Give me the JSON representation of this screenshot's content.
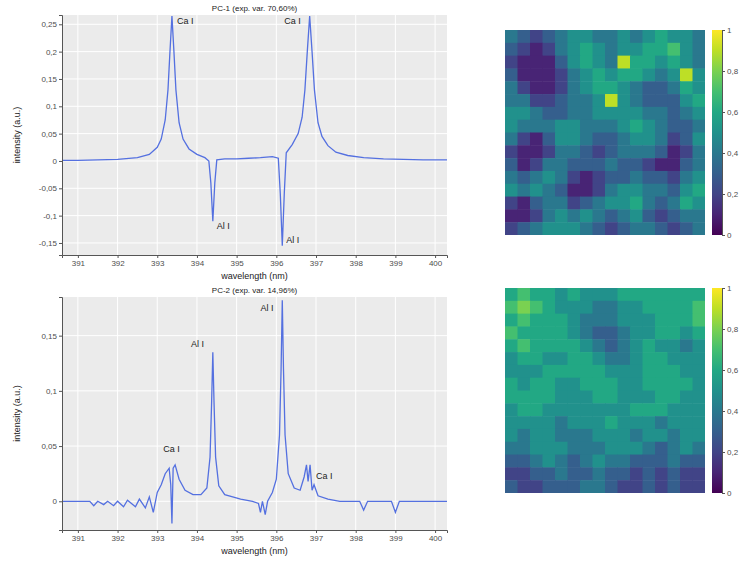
{
  "chart_data": [
    {
      "type": "line",
      "title": "PC-1 (exp. var. 70,60%)",
      "x_label": "wavelength (nm)",
      "y_label": "intensity (a.u.)",
      "color": "#5470e0",
      "grid": true,
      "x": [
        390.6,
        391,
        391.5,
        392,
        392.5,
        392.8,
        393.0,
        393.1,
        393.2,
        393.27,
        393.32,
        393.37,
        393.42,
        393.47,
        393.55,
        393.65,
        393.8,
        394.0,
        394.2,
        394.3,
        394.35,
        394.4,
        394.45,
        394.5,
        394.7,
        395.0,
        395.3,
        395.6,
        395.9,
        396.05,
        396.1,
        396.15,
        396.2,
        396.25,
        396.4,
        396.55,
        396.65,
        396.72,
        396.78,
        396.84,
        396.9,
        396.96,
        397.05,
        397.15,
        397.3,
        397.5,
        397.8,
        398.2,
        398.7,
        399.2,
        399.7,
        400.3
      ],
      "values": [
        0.001,
        0.001,
        0.002,
        0.003,
        0.006,
        0.012,
        0.025,
        0.04,
        0.075,
        0.13,
        0.2,
        0.265,
        0.2,
        0.13,
        0.07,
        0.04,
        0.022,
        0.012,
        0.006,
        0.0,
        -0.04,
        -0.11,
        -0.04,
        0.002,
        0.004,
        0.004,
        0.005,
        0.006,
        0.008,
        0.005,
        -0.06,
        -0.155,
        -0.06,
        0.015,
        0.03,
        0.05,
        0.08,
        0.13,
        0.2,
        0.265,
        0.2,
        0.13,
        0.07,
        0.045,
        0.028,
        0.016,
        0.01,
        0.006,
        0.004,
        0.003,
        0.002,
        0.002
      ],
      "xlim": [
        390.6,
        400.3
      ],
      "xticks": [
        391,
        392,
        393,
        394,
        395,
        396,
        397,
        398,
        399,
        400
      ],
      "ylim": [
        -0.172,
        0.267
      ],
      "yticks": [
        {
          "value": -0.15,
          "label": "-0,15"
        },
        {
          "value": -0.1,
          "label": "-0,1"
        },
        {
          "value": -0.05,
          "label": "-0,05"
        },
        0,
        {
          "value": 0.05,
          "label": "0,05"
        },
        {
          "value": 0.1,
          "label": "0,1"
        },
        {
          "value": 0.15,
          "label": "0,15"
        },
        {
          "value": 0.2,
          "label": "0,2"
        },
        {
          "value": 0.25,
          "label": "0,25"
        }
      ],
      "annotations": [
        {
          "text": "Ca I",
          "x": 393.5,
          "y": 0.25
        },
        {
          "text": "Al I",
          "x": 394.5,
          "y": -0.125
        },
        {
          "text": "Al I",
          "x": 396.25,
          "y": -0.15
        },
        {
          "text": "Ca I",
          "x": 396.2,
          "y": 0.25
        }
      ]
    },
    {
      "type": "line",
      "title": "PC-2 (exp. var. 14,96%)",
      "x_label": "wavelength (nm)",
      "y_label": "intensity (a.u.)",
      "color": "#5470e0",
      "grid": true,
      "x": [
        390.6,
        391.3,
        391.4,
        391.5,
        391.65,
        391.75,
        391.9,
        392.0,
        392.15,
        392.25,
        392.45,
        392.55,
        392.7,
        392.8,
        392.9,
        393.0,
        393.1,
        393.2,
        393.3,
        393.34,
        393.37,
        393.4,
        393.45,
        393.55,
        393.7,
        393.9,
        394.1,
        394.25,
        394.33,
        394.37,
        394.4,
        394.43,
        394.47,
        394.55,
        394.7,
        394.9,
        395.1,
        395.4,
        395.55,
        395.6,
        395.65,
        395.72,
        395.78,
        395.9,
        396.0,
        396.08,
        396.12,
        396.15,
        396.18,
        396.22,
        396.3,
        396.45,
        396.6,
        396.7,
        396.76,
        396.8,
        396.85,
        396.9,
        396.95,
        397.05,
        397.3,
        397.6,
        398.1,
        398.2,
        398.3,
        398.9,
        399.0,
        399.1,
        400.3
      ],
      "values": [
        0.0,
        0.0,
        -0.004,
        0.0,
        -0.003,
        0.0,
        -0.004,
        0.0,
        -0.005,
        0.001,
        -0.005,
        0.002,
        -0.006,
        0.004,
        -0.01,
        0.008,
        0.015,
        0.025,
        0.03,
        0.015,
        -0.02,
        0.03,
        0.033,
        0.02,
        0.01,
        0.006,
        0.006,
        0.012,
        0.04,
        0.09,
        0.135,
        0.09,
        0.04,
        0.014,
        0.006,
        0.004,
        0.002,
        0.0,
        -0.002,
        -0.01,
        0.0,
        -0.012,
        0.0,
        0.008,
        0.02,
        0.06,
        0.12,
        0.182,
        0.12,
        0.06,
        0.025,
        0.012,
        0.01,
        0.022,
        0.033,
        0.018,
        0.033,
        0.01,
        0.015,
        0.005,
        0.002,
        0.0,
        0.0,
        -0.008,
        0.0,
        0.0,
        -0.01,
        0.0,
        0.0
      ],
      "xlim": [
        390.6,
        400.3
      ],
      "xticks": [
        391,
        392,
        393,
        394,
        395,
        396,
        397,
        398,
        399,
        400
      ],
      "ylim": [
        -0.026,
        0.185
      ],
      "yticks": [
        0,
        {
          "value": 0.05,
          "label": "0,05"
        },
        {
          "value": 0.1,
          "label": "0,1"
        },
        {
          "value": 0.15,
          "label": "0,15"
        }
      ],
      "annotations": [
        {
          "text": "Ca I",
          "x": 393.15,
          "y": 0.045
        },
        {
          "text": "Al I",
          "x": 393.85,
          "y": 0.14
        },
        {
          "text": "Al I",
          "x": 395.6,
          "y": 0.172
        },
        {
          "text": "Ca I",
          "x": 397.0,
          "y": 0.02
        }
      ]
    },
    {
      "type": "heatmap",
      "color": "viridis",
      "tick_labels": false,
      "color_range": [
        0,
        1
      ],
      "color_ticks": [
        0,
        {
          "value": 0.2,
          "label": "0,2"
        },
        {
          "value": 0.4,
          "label": "0,4"
        },
        {
          "value": 0.6,
          "label": "0,6"
        },
        {
          "value": 0.8,
          "label": "0,8"
        },
        1
      ],
      "cells": [
        [
          0.4,
          0.3,
          0.2,
          0.3,
          0.4,
          0.5,
          0.5,
          0.4,
          0.4,
          0.5,
          0.4,
          0.5,
          0.6,
          0.5,
          0.5,
          0.4
        ],
        [
          0.3,
          0.2,
          0.1,
          0.2,
          0.4,
          0.5,
          0.6,
          0.5,
          0.4,
          0.5,
          0.5,
          0.6,
          0.6,
          0.7,
          0.5,
          0.4
        ],
        [
          0.2,
          0.1,
          0.1,
          0.1,
          0.3,
          0.5,
          0.6,
          0.5,
          0.4,
          0.9,
          0.6,
          0.6,
          0.5,
          0.6,
          0.5,
          0.4
        ],
        [
          0.3,
          0.1,
          0.1,
          0.1,
          0.2,
          0.4,
          0.5,
          0.6,
          0.5,
          0.6,
          0.6,
          0.5,
          0.4,
          0.5,
          0.9,
          0.5
        ],
        [
          0.4,
          0.2,
          0.1,
          0.1,
          0.2,
          0.4,
          0.5,
          0.6,
          0.6,
          0.5,
          0.4,
          0.3,
          0.3,
          0.4,
          0.6,
          0.5
        ],
        [
          0.4,
          0.4,
          0.2,
          0.2,
          0.3,
          0.4,
          0.4,
          0.5,
          0.9,
          0.5,
          0.4,
          0.3,
          0.3,
          0.3,
          0.5,
          0.6
        ],
        [
          0.5,
          0.5,
          0.4,
          0.3,
          0.3,
          0.4,
          0.4,
          0.5,
          0.5,
          0.5,
          0.5,
          0.4,
          0.4,
          0.3,
          0.4,
          0.5
        ],
        [
          0.5,
          0.4,
          0.4,
          0.4,
          0.5,
          0.5,
          0.4,
          0.4,
          0.4,
          0.5,
          0.6,
          0.5,
          0.4,
          0.3,
          0.3,
          0.4
        ],
        [
          0.4,
          0.2,
          0.1,
          0.3,
          0.5,
          0.5,
          0.4,
          0.3,
          0.3,
          0.4,
          0.5,
          0.5,
          0.4,
          0.2,
          0.3,
          0.5
        ],
        [
          0.2,
          0.1,
          0.1,
          0.2,
          0.4,
          0.4,
          0.3,
          0.2,
          0.3,
          0.4,
          0.4,
          0.4,
          0.3,
          0.1,
          0.2,
          0.4
        ],
        [
          0.3,
          0.1,
          0.2,
          0.4,
          0.4,
          0.3,
          0.3,
          0.3,
          0.4,
          0.3,
          0.3,
          0.2,
          0.1,
          0.1,
          0.3,
          0.4
        ],
        [
          0.4,
          0.3,
          0.4,
          0.5,
          0.4,
          0.2,
          0.1,
          0.2,
          0.3,
          0.3,
          0.4,
          0.3,
          0.3,
          0.2,
          0.4,
          0.5
        ],
        [
          0.5,
          0.4,
          0.5,
          0.4,
          0.3,
          0.1,
          0.1,
          0.2,
          0.4,
          0.5,
          0.5,
          0.4,
          0.4,
          0.3,
          0.5,
          0.6
        ],
        [
          0.2,
          0.1,
          0.3,
          0.4,
          0.4,
          0.2,
          0.3,
          0.4,
          0.5,
          0.5,
          0.6,
          0.4,
          0.3,
          0.4,
          0.6,
          0.5
        ],
        [
          0.1,
          0.1,
          0.2,
          0.4,
          0.5,
          0.4,
          0.5,
          0.4,
          0.3,
          0.4,
          0.5,
          0.3,
          0.2,
          0.3,
          0.4,
          0.4
        ],
        [
          0.2,
          0.3,
          0.4,
          0.5,
          0.5,
          0.5,
          0.4,
          0.3,
          0.2,
          0.3,
          0.4,
          0.4,
          0.3,
          0.2,
          0.3,
          0.4
        ]
      ]
    },
    {
      "type": "heatmap",
      "color": "viridis",
      "tick_labels": false,
      "color_range": [
        0,
        1
      ],
      "color_ticks": [
        0,
        {
          "value": 0.2,
          "label": "0,2"
        },
        {
          "value": 0.4,
          "label": "0,4"
        },
        {
          "value": 0.6,
          "label": "0,6"
        },
        {
          "value": 0.8,
          "label": "0,8"
        },
        1
      ],
      "cells": [
        [
          0.6,
          0.7,
          0.6,
          0.6,
          0.5,
          0.6,
          0.5,
          0.5,
          0.5,
          0.6,
          0.6,
          0.6,
          0.6,
          0.6,
          0.6,
          0.6
        ],
        [
          0.7,
          0.8,
          0.7,
          0.6,
          0.5,
          0.5,
          0.5,
          0.4,
          0.4,
          0.5,
          0.5,
          0.6,
          0.6,
          0.6,
          0.6,
          0.7
        ],
        [
          0.6,
          0.7,
          0.6,
          0.6,
          0.6,
          0.5,
          0.4,
          0.4,
          0.4,
          0.5,
          0.5,
          0.5,
          0.6,
          0.6,
          0.6,
          0.7
        ],
        [
          0.7,
          0.6,
          0.6,
          0.6,
          0.6,
          0.5,
          0.4,
          0.3,
          0.3,
          0.4,
          0.5,
          0.5,
          0.6,
          0.6,
          0.5,
          0.6
        ],
        [
          0.6,
          0.7,
          0.6,
          0.6,
          0.6,
          0.6,
          0.5,
          0.4,
          0.3,
          0.4,
          0.5,
          0.6,
          0.5,
          0.5,
          0.4,
          0.5
        ],
        [
          0.5,
          0.6,
          0.6,
          0.5,
          0.5,
          0.6,
          0.6,
          0.5,
          0.4,
          0.4,
          0.5,
          0.6,
          0.6,
          0.5,
          0.5,
          0.5
        ],
        [
          0.5,
          0.5,
          0.5,
          0.6,
          0.6,
          0.6,
          0.6,
          0.6,
          0.5,
          0.5,
          0.5,
          0.6,
          0.6,
          0.6,
          0.5,
          0.5
        ],
        [
          0.6,
          0.5,
          0.6,
          0.6,
          0.5,
          0.5,
          0.6,
          0.6,
          0.6,
          0.5,
          0.5,
          0.6,
          0.6,
          0.6,
          0.6,
          0.5
        ],
        [
          0.6,
          0.6,
          0.6,
          0.6,
          0.5,
          0.5,
          0.5,
          0.6,
          0.6,
          0.5,
          0.5,
          0.5,
          0.6,
          0.6,
          0.5,
          0.5
        ],
        [
          0.5,
          0.6,
          0.6,
          0.5,
          0.5,
          0.5,
          0.5,
          0.5,
          0.5,
          0.5,
          0.6,
          0.6,
          0.6,
          0.5,
          0.5,
          0.5
        ],
        [
          0.5,
          0.5,
          0.5,
          0.5,
          0.4,
          0.5,
          0.5,
          0.5,
          0.6,
          0.5,
          0.5,
          0.5,
          0.4,
          0.5,
          0.5,
          0.5
        ],
        [
          0.5,
          0.4,
          0.5,
          0.5,
          0.4,
          0.4,
          0.4,
          0.5,
          0.5,
          0.5,
          0.4,
          0.5,
          0.5,
          0.4,
          0.5,
          0.5
        ],
        [
          0.4,
          0.4,
          0.5,
          0.5,
          0.5,
          0.4,
          0.4,
          0.4,
          0.5,
          0.5,
          0.5,
          0.4,
          0.3,
          0.4,
          0.5,
          0.4
        ],
        [
          0.3,
          0.3,
          0.4,
          0.5,
          0.4,
          0.3,
          0.4,
          0.5,
          0.4,
          0.4,
          0.3,
          0.3,
          0.3,
          0.4,
          0.3,
          0.3
        ],
        [
          0.2,
          0.2,
          0.3,
          0.3,
          0.4,
          0.3,
          0.3,
          0.4,
          0.3,
          0.3,
          0.2,
          0.3,
          0.2,
          0.3,
          0.2,
          0.2
        ],
        [
          0.3,
          0.2,
          0.2,
          0.3,
          0.3,
          0.3,
          0.4,
          0.4,
          0.3,
          0.2,
          0.2,
          0.3,
          0.2,
          0.3,
          0.2,
          0.2
        ]
      ]
    }
  ]
}
